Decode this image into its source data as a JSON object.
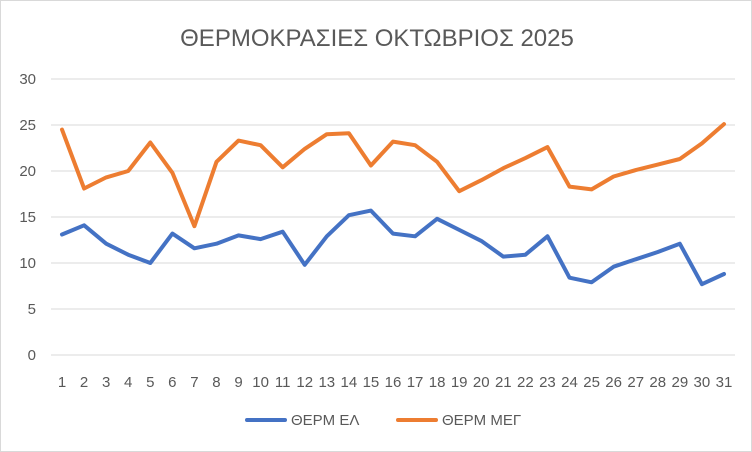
{
  "chart_data": {
    "type": "line",
    "title": "ΘΕΡΜΟΚΡΑΣΙΕΣ ΟΚΤΩΒΡΙΟΣ 2025",
    "xlabel": "",
    "ylabel": "",
    "ylim": [
      0,
      30
    ],
    "yticks": [
      0,
      5,
      10,
      15,
      20,
      25,
      30
    ],
    "grid": true,
    "legend_position": "bottom",
    "categories": [
      "1",
      "2",
      "3",
      "4",
      "5",
      "6",
      "7",
      "8",
      "9",
      "10",
      "11",
      "12",
      "13",
      "14",
      "15",
      "16",
      "17",
      "18",
      "19",
      "20",
      "21",
      "22",
      "23",
      "24",
      "25",
      "26",
      "27",
      "28",
      "29",
      "30",
      "31"
    ],
    "series": [
      {
        "name": "ΘΕΡΜ ΕΛ",
        "color": "#4472c4",
        "values": [
          13.1,
          14.1,
          12.1,
          10.9,
          10.0,
          13.2,
          11.6,
          12.1,
          13.0,
          12.6,
          13.4,
          9.8,
          12.9,
          15.2,
          15.7,
          13.2,
          12.9,
          14.8,
          13.6,
          12.4,
          10.7,
          10.9,
          12.9,
          8.4,
          7.9,
          9.6,
          10.4,
          11.2,
          12.1,
          7.7,
          8.8
        ]
      },
      {
        "name": "ΘΕΡΜ ΜΕΓ",
        "color": "#ed7d31",
        "values": [
          24.5,
          18.1,
          19.3,
          20.0,
          23.1,
          19.8,
          14.0,
          21.0,
          23.3,
          22.8,
          20.4,
          22.4,
          24.0,
          24.1,
          20.6,
          23.2,
          22.8,
          21.0,
          17.8,
          19.0,
          20.3,
          21.4,
          22.6,
          18.3,
          18.0,
          19.4,
          20.1,
          20.7,
          21.3,
          23.0,
          25.1
        ]
      }
    ]
  }
}
